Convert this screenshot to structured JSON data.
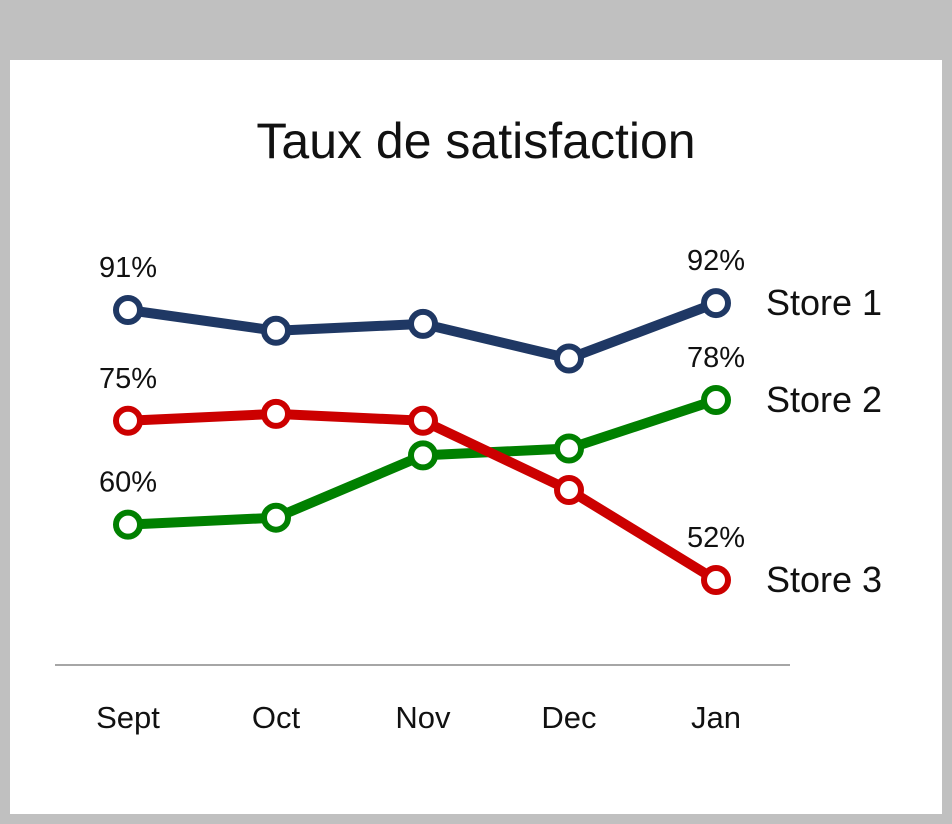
{
  "window": {
    "chrome_color": "#c0c0c0"
  },
  "chart_data": {
    "type": "line",
    "title": "Taux de satisfaction",
    "categories": [
      "Sept",
      "Oct",
      "Nov",
      "Dec",
      "Jan"
    ],
    "ylim": [
      45,
      100
    ],
    "grid": false,
    "legend": "right, at line ends",
    "series": [
      {
        "name": "Store 1",
        "color": "#1f3864",
        "values": [
          91,
          88,
          89,
          84,
          92
        ],
        "start_label": "91%",
        "end_label": "92%"
      },
      {
        "name": "Store 2",
        "color": "#008000",
        "values": [
          60,
          61,
          70,
          71,
          78
        ],
        "start_label": "60%",
        "end_label": "78%"
      },
      {
        "name": "Store 3",
        "color": "#cc0000",
        "values": [
          75,
          76,
          75,
          65,
          52
        ],
        "start_label": "75%",
        "end_label": "52%"
      }
    ]
  }
}
